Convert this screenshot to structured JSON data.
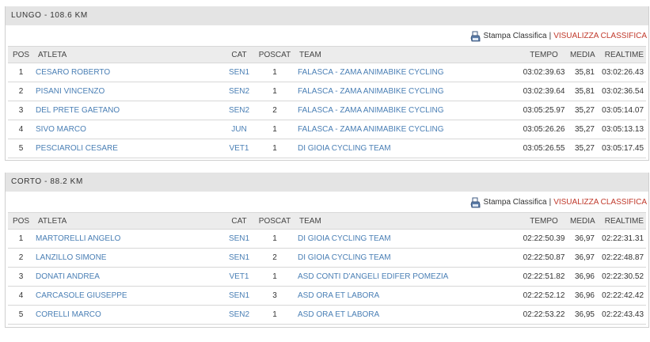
{
  "columns": {
    "pos": "POS",
    "atleta": "ATLETA",
    "cat": "CAT",
    "poscat": "POSCAT",
    "team": "TEAM",
    "tempo": "TEMPO",
    "media": "MEDIA",
    "realtime": "REALTIME"
  },
  "toolbar": {
    "print_label": "Stampa Classifica",
    "separator": "|",
    "view_label": "VISUALIZZA CLASSIFICA",
    "print_icon": "printer-icon"
  },
  "colors": {
    "link": "#4a7fb5",
    "view_link": "#c0392b",
    "header_bg": "#e4e4e4"
  },
  "sections": [
    {
      "title": "LUNGO - 108.6 KM",
      "rows": [
        {
          "pos": "1",
          "atleta": "CESARO ROBERTO",
          "cat": "SEN1",
          "poscat": "1",
          "team": "FALASCA - ZAMA ANIMABIKE CYCLING",
          "tempo": "03:02:39.63",
          "media": "35,81",
          "realtime": "03:02:26.43"
        },
        {
          "pos": "2",
          "atleta": "PISANI VINCENZO",
          "cat": "SEN2",
          "poscat": "1",
          "team": "FALASCA - ZAMA ANIMABIKE CYCLING",
          "tempo": "03:02:39.64",
          "media": "35,81",
          "realtime": "03:02:36.54"
        },
        {
          "pos": "3",
          "atleta": "DEL PRETE GAETANO",
          "cat": "SEN2",
          "poscat": "2",
          "team": "FALASCA - ZAMA ANIMABIKE CYCLING",
          "tempo": "03:05:25.97",
          "media": "35,27",
          "realtime": "03:05:14.07"
        },
        {
          "pos": "4",
          "atleta": "SIVO MARCO",
          "cat": "JUN",
          "poscat": "1",
          "team": "FALASCA - ZAMA ANIMABIKE CYCLING",
          "tempo": "03:05:26.26",
          "media": "35,27",
          "realtime": "03:05:13.13"
        },
        {
          "pos": "5",
          "atleta": "PESCIAROLI CESARE",
          "cat": "VET1",
          "poscat": "1",
          "team": "DI GIOIA CYCLING TEAM",
          "tempo": "03:05:26.55",
          "media": "35,27",
          "realtime": "03:05:17.45"
        }
      ]
    },
    {
      "title": "CORTO - 88.2 KM",
      "rows": [
        {
          "pos": "1",
          "atleta": "MARTORELLI ANGELO",
          "cat": "SEN1",
          "poscat": "1",
          "team": "DI GIOIA CYCLING TEAM",
          "tempo": "02:22:50.39",
          "media": "36,97",
          "realtime": "02:22:31.31"
        },
        {
          "pos": "2",
          "atleta": "LANZILLO SIMONE",
          "cat": "SEN1",
          "poscat": "2",
          "team": "DI GIOIA CYCLING TEAM",
          "tempo": "02:22:50.87",
          "media": "36,97",
          "realtime": "02:22:48.87"
        },
        {
          "pos": "3",
          "atleta": "DONATI ANDREA",
          "cat": "VET1",
          "poscat": "1",
          "team": "ASD CONTI D'ANGELI EDIFER POMEZIA",
          "tempo": "02:22:51.82",
          "media": "36,96",
          "realtime": "02:22:30.52"
        },
        {
          "pos": "4",
          "atleta": "CARCASOLE GIUSEPPE",
          "cat": "SEN1",
          "poscat": "3",
          "team": "ASD ORA ET LABORA",
          "tempo": "02:22:52.12",
          "media": "36,96",
          "realtime": "02:22:42.42"
        },
        {
          "pos": "5",
          "atleta": "CORELLI MARCO",
          "cat": "SEN2",
          "poscat": "1",
          "team": "ASD ORA ET LABORA",
          "tempo": "02:22:53.22",
          "media": "36,95",
          "realtime": "02:22:43.43"
        }
      ]
    }
  ]
}
